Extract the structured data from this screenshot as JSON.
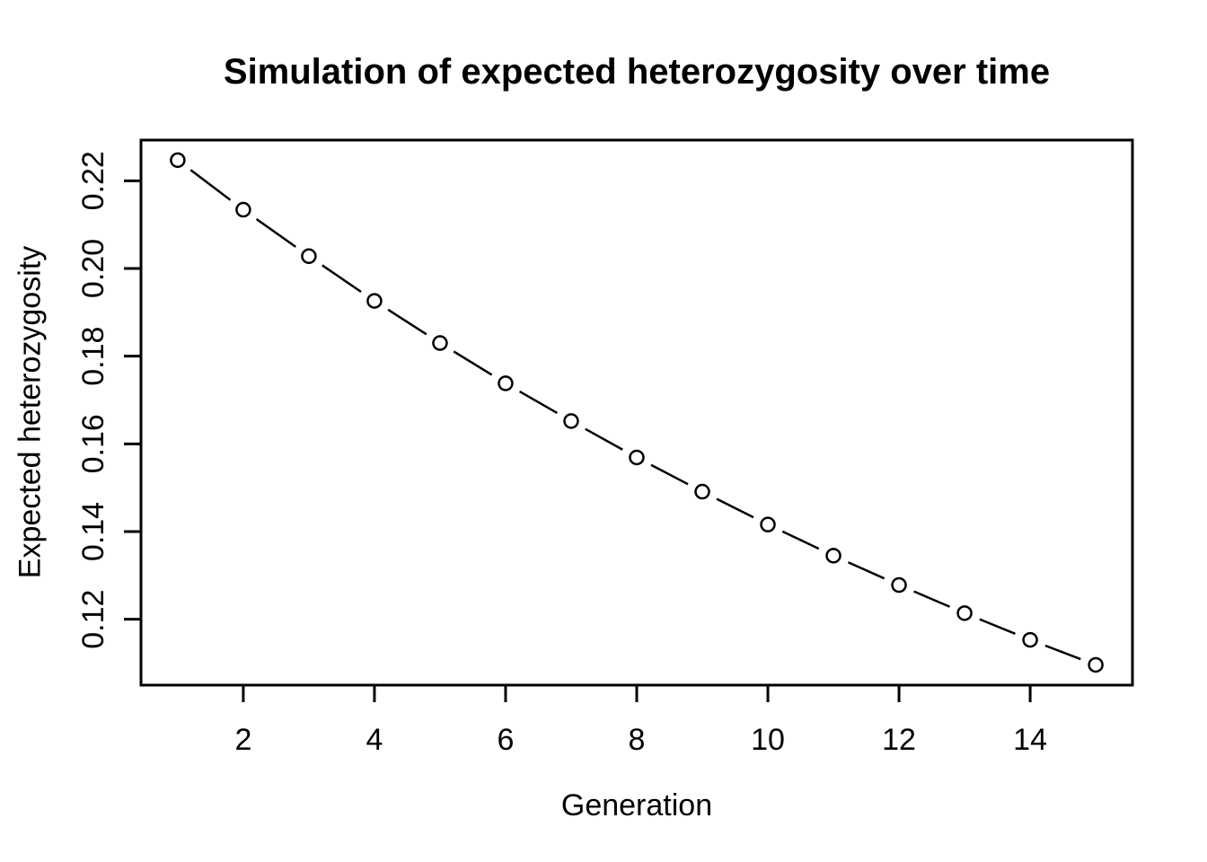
{
  "chart_data": {
    "type": "line",
    "title": "Simulation of expected heterozygosity over time",
    "xlabel": "Generation",
    "ylabel": "Expected heterozygosity",
    "x": [
      1,
      2,
      3,
      4,
      5,
      6,
      7,
      8,
      9,
      10,
      11,
      12,
      13,
      14,
      15
    ],
    "y": [
      0.2247,
      0.2134,
      0.2028,
      0.1926,
      0.183,
      0.1738,
      0.1652,
      0.1569,
      0.1491,
      0.1416,
      0.1345,
      0.1278,
      0.1214,
      0.1153,
      0.1096
    ],
    "x_ticks": [
      2,
      4,
      6,
      8,
      10,
      12,
      14
    ],
    "y_ticks": [
      0.12,
      0.14,
      0.16,
      0.18,
      0.2,
      0.22
    ],
    "xlim": [
      0.44,
      15.56
    ],
    "ylim": [
      0.10498,
      0.22928
    ],
    "marker": "open-circle",
    "line_style": "dashed",
    "line_color": "#000000",
    "marker_fill": "#ffffff",
    "background": "#ffffff",
    "grid": false,
    "legend": null
  }
}
